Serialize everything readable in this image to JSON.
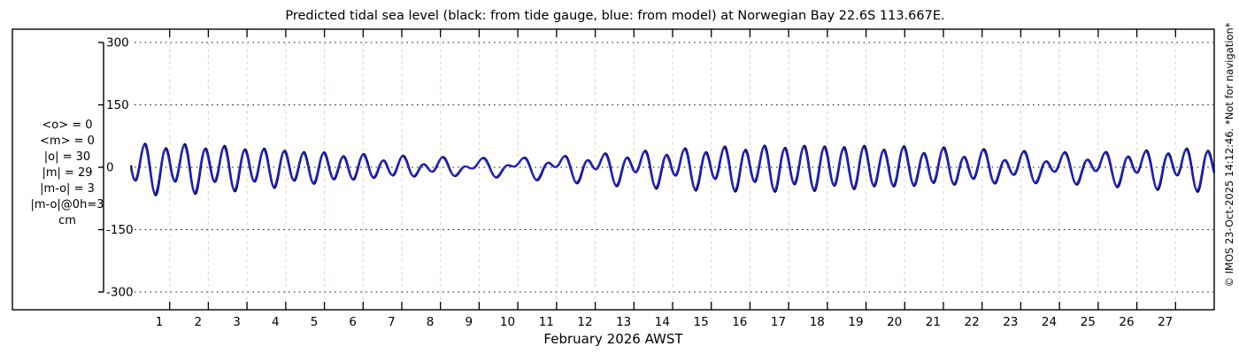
{
  "title": "Predicted tidal sea level (black: from tide gauge, blue: from model) at Norwegian Bay 22.6S 113.667E.",
  "stats": {
    "lines": [
      "<o> = 0",
      "<m> = 0",
      "|o| = 30",
      "|m| = 29",
      "|m-o| = 3",
      "|m-o|@0h=3",
      "cm"
    ]
  },
  "x_axis_label": "February 2026 AWST",
  "watermark": "© IMOS 23-Oct-2025 14:12:46. *Not for navigation*",
  "colors": {
    "observed_line": "#000000",
    "model_line": "#2121c8",
    "horizontal_grid": "#1a1a1a",
    "vertical_grid": "#e6d7d8",
    "axis": "#000000",
    "background": "#ffffff"
  },
  "chart_data": {
    "type": "line",
    "title": "Predicted tidal sea level (black: from tide gauge, blue: from model) at Norwegian Bay 22.6S 113.667E.",
    "xlabel": "February 2026 AWST",
    "ylabel": "cm",
    "ylim": [
      -300,
      300
    ],
    "y_ticks": [
      300,
      150,
      0,
      -150,
      -300
    ],
    "x_tick_days": [
      1,
      2,
      3,
      4,
      5,
      6,
      7,
      8,
      9,
      10,
      11,
      12,
      13,
      14,
      15,
      16,
      17,
      18,
      19,
      20,
      21,
      22,
      23,
      24,
      25,
      26,
      27
    ],
    "x_range_days": [
      0,
      28
    ],
    "grid": true,
    "legend_position": "none",
    "sample_step_h": 0.5,
    "series": [
      {
        "name": "tide gauge",
        "color": "#000000",
        "line_width": 2,
        "harmonics_cm": [
          {
            "amp": 33,
            "period_h": 12.4206,
            "phase_rad": 2.0
          },
          {
            "amp": 15,
            "period_h": 12.0,
            "phase_rad": 1.2
          },
          {
            "amp": 12,
            "period_h": 23.9345,
            "phase_rad": 5.5
          },
          {
            "amp": 8,
            "period_h": 25.8193,
            "phase_rad": 4.8
          },
          {
            "amp": 7,
            "period_h": 12.6583,
            "phase_rad": 1.0
          }
        ]
      },
      {
        "name": "model",
        "color": "#2121c8",
        "line_width": 2.2,
        "derived_from": "tide gauge",
        "amp_scale": 0.94,
        "time_shift_h": 0.35
      }
    ]
  }
}
